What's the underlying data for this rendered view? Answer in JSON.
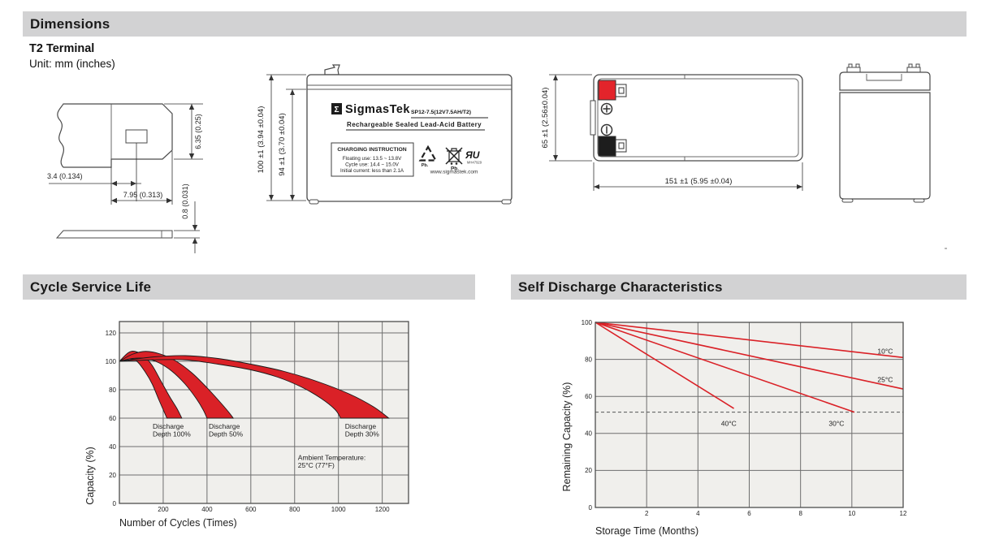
{
  "page": {
    "dimensions_title": "Dimensions",
    "terminal_heading": "T2 Terminal",
    "unit_note": "Unit: mm (inches)",
    "cycle_title": "Cycle Service Life",
    "self_title": "Self Discharge Characteristics"
  },
  "colors": {
    "header_bar": "#d2d2d3",
    "chart_red": "#da2127",
    "plot_background": "#f0efec",
    "gridline": "#6e6e6e",
    "terminal_red": "#e3242b",
    "terminal_black": "#1d1d1d"
  },
  "terminal_drawing": {
    "dim_hole_offset": "3.4 (0.134)",
    "dim_blade_length": "7.95 (0.313)",
    "dim_blade_height": "6.35 (0.25)",
    "dim_thickness": "0.8 (0.031)"
  },
  "front_view": {
    "dim_height_outer": "100 ±1 (3.94 ±0.04)",
    "dim_height_inner": "94 ±1 (3.70 ±0.04)",
    "label": {
      "logo_sigma": "Σ",
      "brand": "SigmasTek",
      "model": "SP12-7.5(12V7.5AH/T2)",
      "subtitle": "Rechargeable Sealed Lead-Acid Battery",
      "charging_title": "CHARGING INSTRUCTION",
      "charging_lines": [
        "Floating use: 13.5 ~ 13.8V",
        "Cycle use: 14.4 ~ 15.0V",
        "Initial current: less than 2.1A"
      ],
      "pb_recycle": "Pb.",
      "pb_trash": "Pb.",
      "ul_mark": "ЯU",
      "ul_code": "MH47929",
      "website": "www.sigmastek.com"
    }
  },
  "top_view": {
    "dim_height": "65 ±1 (2.56±0.04)",
    "dim_width": "151 ±1 (5.95 ±0.04)"
  },
  "chart_data": [
    {
      "id": "cycle",
      "type": "area",
      "title": "Cycle Service Life",
      "xlabel": "Number of Cycles (Times)",
      "ylabel": "Capacity (%)",
      "xlim": [
        0,
        1320
      ],
      "ylim": [
        0,
        128
      ],
      "x_ticks": [
        200,
        400,
        600,
        800,
        1000,
        1200
      ],
      "y_ticks": [
        0,
        20,
        40,
        60,
        80,
        100,
        120
      ],
      "grid": true,
      "colors": {
        "band": "#da2127",
        "outline": "#1a1a1a"
      },
      "bands": [
        {
          "name": "Discharge Depth 100%",
          "upper": [
            [
              0,
              100
            ],
            [
              40,
              106
            ],
            [
              70,
              107
            ],
            [
              110,
              104
            ],
            [
              150,
              97
            ],
            [
              190,
              86
            ],
            [
              230,
              75
            ],
            [
              262,
              67
            ],
            [
              285,
              60
            ]
          ],
          "lower": [
            [
              0,
              100
            ],
            [
              40,
              102
            ],
            [
              80,
              100
            ],
            [
              120,
              92
            ],
            [
              150,
              84
            ],
            [
              180,
              73
            ],
            [
              200,
              66
            ],
            [
              217,
              60
            ]
          ]
        },
        {
          "name": "Discharge Depth 50%",
          "upper": [
            [
              0,
              100
            ],
            [
              60,
              105
            ],
            [
              120,
              107
            ],
            [
              190,
              105
            ],
            [
              260,
              100
            ],
            [
              330,
              92
            ],
            [
              390,
              83
            ],
            [
              450,
              73
            ],
            [
              495,
              65
            ],
            [
              520,
              60
            ]
          ],
          "lower": [
            [
              0,
              100
            ],
            [
              60,
              102
            ],
            [
              120,
              102
            ],
            [
              180,
              99
            ],
            [
              240,
              93
            ],
            [
              300,
              84
            ],
            [
              350,
              74
            ],
            [
              382,
              66
            ],
            [
              400,
              60
            ]
          ]
        },
        {
          "name": "Discharge Depth 30%",
          "upper": [
            [
              0,
              100
            ],
            [
              150,
              103
            ],
            [
              300,
              104
            ],
            [
              450,
              102
            ],
            [
              600,
              98
            ],
            [
              750,
              93
            ],
            [
              900,
              86
            ],
            [
              1050,
              77
            ],
            [
              1160,
              68
            ],
            [
              1230,
              60
            ]
          ],
          "lower": [
            [
              0,
              100
            ],
            [
              150,
              101
            ],
            [
              300,
              101
            ],
            [
              450,
              98
            ],
            [
              600,
              94
            ],
            [
              720,
              89
            ],
            [
              830,
              82
            ],
            [
              920,
              74
            ],
            [
              985,
              66
            ],
            [
              1010,
              60
            ]
          ]
        }
      ],
      "annotations": [
        {
          "lines": [
            "Discharge",
            "Depth 100%"
          ],
          "x": 152,
          "y": 52.5
        },
        {
          "lines": [
            "Discharge",
            "Depth 50%"
          ],
          "x": 408,
          "y": 52.5
        },
        {
          "lines": [
            "Discharge",
            "Depth 30%"
          ],
          "x": 1030,
          "y": 52.5
        },
        {
          "lines": [
            "Ambient Temperature:",
            "25°C (77°F)"
          ],
          "x": 815,
          "y": 30.5
        }
      ]
    },
    {
      "id": "self",
      "type": "line",
      "title": "Self Discharge Characteristics",
      "xlabel": "Storage Time (Months)",
      "ylabel": "Remaining Capacity (%)",
      "xlim": [
        0,
        12
      ],
      "ylim": [
        0,
        100
      ],
      "x_ticks": [
        2,
        4,
        6,
        8,
        10,
        12
      ],
      "y_ticks": [
        0,
        20,
        40,
        60,
        80,
        100
      ],
      "grid": true,
      "color": "#da2127",
      "series": [
        {
          "name": "10°C",
          "points": [
            [
              0,
              100
            ],
            [
              12,
              81
            ]
          ],
          "label_x": 11.0,
          "label_y": 84.5
        },
        {
          "name": "25°C",
          "points": [
            [
              0,
              100
            ],
            [
              12,
              64
            ]
          ],
          "label_x": 11.0,
          "label_y": 69
        },
        {
          "name": "30°C",
          "points": [
            [
              0,
              100
            ],
            [
              10.1,
              51.5
            ]
          ],
          "label_x": 9.1,
          "label_y": 45.5
        },
        {
          "name": "40°C",
          "points": [
            [
              0,
              100
            ],
            [
              5.4,
              53.5
            ]
          ],
          "label_x": 4.9,
          "label_y": 45.5
        }
      ],
      "guide_line": {
        "y": 51.5,
        "style": "dashed"
      }
    }
  ]
}
